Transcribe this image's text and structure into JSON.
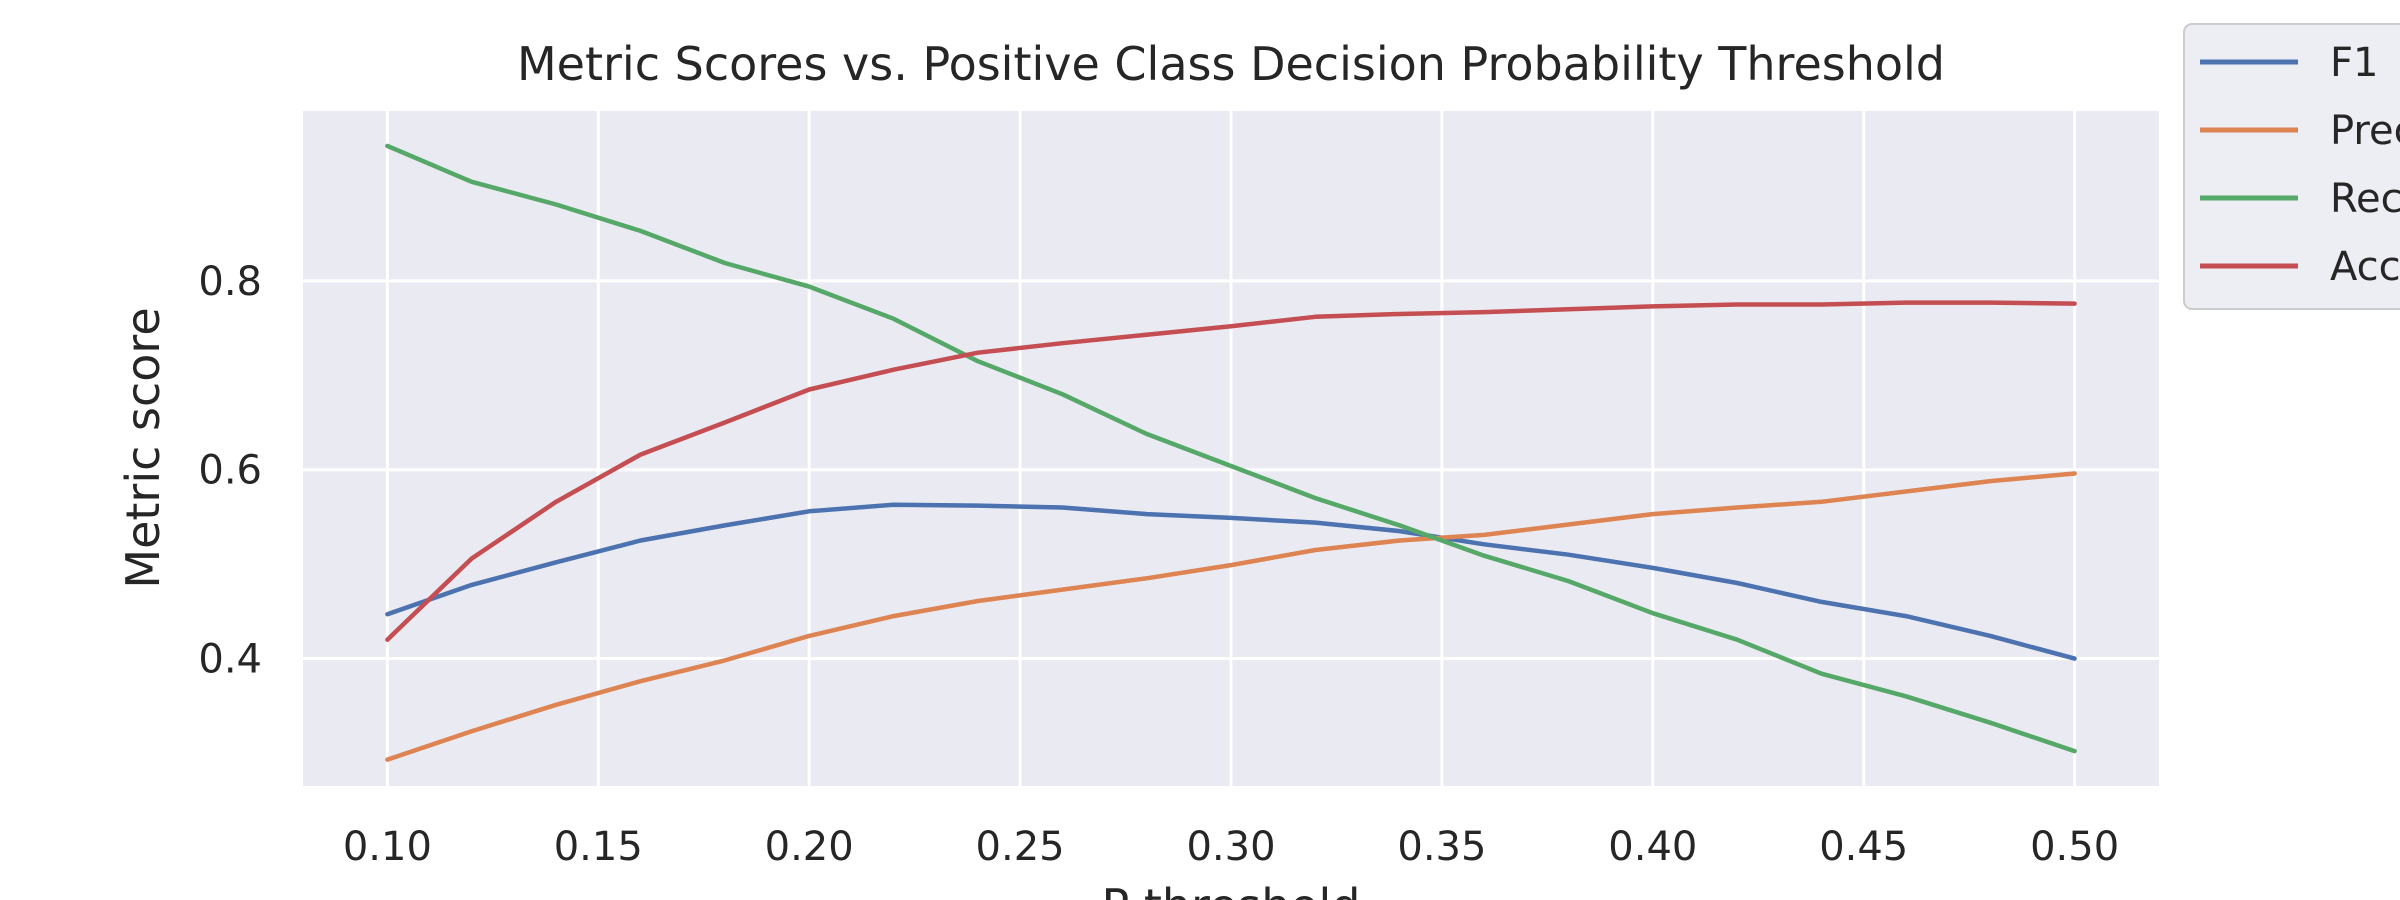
{
  "chart_data": {
    "type": "line",
    "title": "Metric Scores vs. Positive Class Decision Probability Threshold",
    "xlabel": "P threshold",
    "ylabel": "Metric score",
    "xlim": [
      0.08,
      0.52
    ],
    "ylim": [
      0.265,
      0.98
    ],
    "xticks": [
      0.1,
      0.15,
      0.2,
      0.25,
      0.3,
      0.35,
      0.4,
      0.45,
      0.5
    ],
    "xtick_labels": [
      "0.10",
      "0.15",
      "0.20",
      "0.25",
      "0.30",
      "0.35",
      "0.40",
      "0.45",
      "0.50"
    ],
    "yticks": [
      0.4,
      0.6,
      0.8
    ],
    "ytick_labels": [
      "0.4",
      "0.6",
      "0.8"
    ],
    "grid": true,
    "legend": "outside-top-right",
    "series": [
      {
        "name": "F1",
        "color": "#4c72b0",
        "x": [
          0.1,
          0.12,
          0.14,
          0.16,
          0.18,
          0.2,
          0.22,
          0.24,
          0.26,
          0.28,
          0.3,
          0.32,
          0.34,
          0.36,
          0.38,
          0.4,
          0.42,
          0.44,
          0.46,
          0.48,
          0.5
        ],
        "y": [
          0.447,
          0.478,
          0.502,
          0.525,
          0.541,
          0.556,
          0.563,
          0.562,
          0.56,
          0.553,
          0.549,
          0.544,
          0.535,
          0.521,
          0.51,
          0.496,
          0.48,
          0.46,
          0.445,
          0.424,
          0.4
        ]
      },
      {
        "name": "Precision",
        "color": "#dd8452",
        "x": [
          0.1,
          0.12,
          0.14,
          0.16,
          0.18,
          0.2,
          0.22,
          0.24,
          0.26,
          0.28,
          0.3,
          0.32,
          0.34,
          0.36,
          0.38,
          0.4,
          0.42,
          0.44,
          0.46,
          0.48,
          0.5
        ],
        "y": [
          0.293,
          0.323,
          0.351,
          0.376,
          0.398,
          0.424,
          0.445,
          0.461,
          0.473,
          0.485,
          0.499,
          0.515,
          0.525,
          0.531,
          0.542,
          0.553,
          0.56,
          0.566,
          0.577,
          0.588,
          0.596
        ]
      },
      {
        "name": "Recall",
        "color": "#55a868",
        "x": [
          0.1,
          0.12,
          0.14,
          0.16,
          0.18,
          0.2,
          0.22,
          0.24,
          0.26,
          0.28,
          0.3,
          0.32,
          0.34,
          0.36,
          0.38,
          0.4,
          0.42,
          0.44,
          0.46,
          0.48,
          0.5
        ],
        "y": [
          0.943,
          0.905,
          0.881,
          0.853,
          0.819,
          0.794,
          0.76,
          0.715,
          0.68,
          0.638,
          0.604,
          0.57,
          0.541,
          0.509,
          0.482,
          0.448,
          0.42,
          0.384,
          0.36,
          0.332,
          0.302
        ]
      },
      {
        "name": "Accuracy",
        "color": "#c44e52",
        "x": [
          0.1,
          0.12,
          0.14,
          0.16,
          0.18,
          0.2,
          0.22,
          0.24,
          0.26,
          0.28,
          0.3,
          0.32,
          0.34,
          0.36,
          0.38,
          0.4,
          0.42,
          0.44,
          0.46,
          0.48,
          0.5
        ],
        "y": [
          0.42,
          0.506,
          0.566,
          0.616,
          0.65,
          0.685,
          0.706,
          0.724,
          0.734,
          0.743,
          0.752,
          0.762,
          0.765,
          0.767,
          0.77,
          0.773,
          0.775,
          0.775,
          0.777,
          0.777,
          0.776
        ]
      }
    ]
  }
}
